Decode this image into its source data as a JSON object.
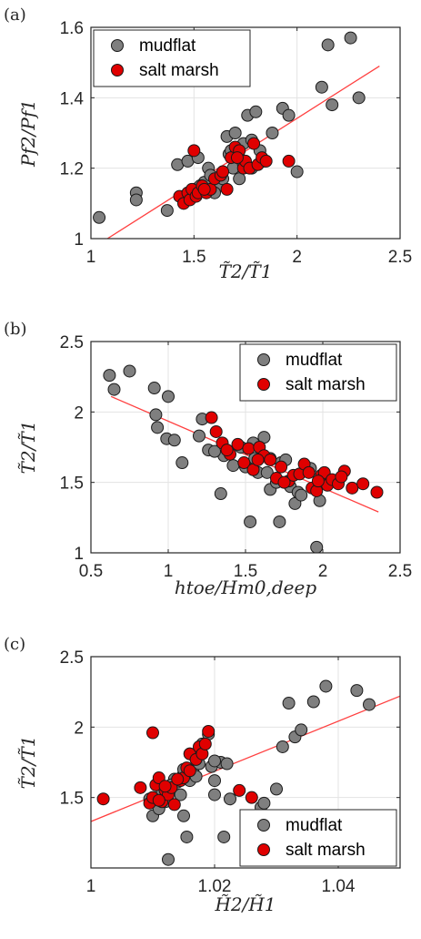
{
  "colors": {
    "mudflat": "#7f7f7f",
    "salt_marsh": "#e00000",
    "fit_line": "#ff4040",
    "grid": "#e3e3e3",
    "axis": "#262626"
  },
  "chart_data": [
    {
      "type": "scatter",
      "panel_label": "(a)",
      "xlabel": "T̃2/T̃1",
      "ylabel": "Pf2/Pf1",
      "xlim": [
        1,
        2.5
      ],
      "ylim": [
        1,
        1.6
      ],
      "xticks": [
        1,
        1.5,
        2,
        2.5
      ],
      "yticks": [
        1,
        1.2,
        1.4,
        1.6
      ],
      "xtick_labels": [
        "1",
        "1.5",
        "2",
        "2.5"
      ],
      "ytick_labels": [
        "1",
        "1.2",
        "1.4",
        "1.6"
      ],
      "grid": true,
      "legend_position": "top-left",
      "series": [
        {
          "name": "mudflat",
          "x": [
            1.04,
            1.22,
            1.22,
            1.37,
            1.42,
            1.45,
            1.47,
            1.52,
            1.55,
            1.57,
            1.58,
            1.62,
            1.66,
            1.67,
            1.68,
            1.7,
            1.72,
            1.74,
            1.76,
            1.78,
            1.8,
            1.82,
            1.84,
            1.88,
            1.93,
            1.96,
            2.0,
            2.12,
            2.15,
            2.17,
            2.26,
            2.3,
            1.5,
            1.53,
            1.6,
            1.64,
            1.69,
            1.72,
            1.74,
            1.78
          ],
          "y": [
            1.06,
            1.13,
            1.11,
            1.08,
            1.21,
            1.11,
            1.22,
            1.23,
            1.16,
            1.2,
            1.18,
            1.15,
            1.29,
            1.24,
            1.25,
            1.3,
            1.23,
            1.27,
            1.35,
            1.28,
            1.36,
            1.25,
            1.22,
            1.3,
            1.37,
            1.35,
            1.19,
            1.43,
            1.55,
            1.38,
            1.57,
            1.4,
            1.14,
            1.15,
            1.13,
            1.17,
            1.2,
            1.17,
            1.21,
            1.2
          ]
        },
        {
          "name": "salt marsh",
          "x": [
            1.43,
            1.45,
            1.47,
            1.48,
            1.49,
            1.5,
            1.51,
            1.52,
            1.54,
            1.56,
            1.58,
            1.6,
            1.63,
            1.66,
            1.68,
            1.7,
            1.72,
            1.74,
            1.75,
            1.77,
            1.79,
            1.81,
            1.83,
            1.85,
            1.96,
            1.55,
            1.64,
            1.71
          ],
          "y": [
            1.12,
            1.1,
            1.13,
            1.11,
            1.14,
            1.25,
            1.12,
            1.13,
            1.15,
            1.13,
            1.14,
            1.17,
            1.18,
            1.14,
            1.23,
            1.26,
            1.25,
            1.2,
            1.22,
            1.2,
            1.27,
            1.21,
            1.23,
            1.22,
            1.22,
            1.14,
            1.19,
            1.23
          ]
        }
      ],
      "fit_line": {
        "x": [
          1.08,
          2.4
        ],
        "y": [
          1.0,
          1.49
        ]
      }
    },
    {
      "type": "scatter",
      "panel_label": "(b)",
      "xlabel": "htoe/Hm0,deep",
      "ylabel": "T̃2/T̃1",
      "xlim": [
        0.5,
        2.5
      ],
      "ylim": [
        1,
        2.5
      ],
      "xticks": [
        0.5,
        1,
        1.5,
        2,
        2.5
      ],
      "yticks": [
        1,
        1.5,
        2,
        2.5
      ],
      "xtick_labels": [
        "0.5",
        "1",
        "1.5",
        "2",
        "2.5"
      ],
      "ytick_labels": [
        "1",
        "1.5",
        "2",
        "2.5"
      ],
      "grid": true,
      "legend_position": "top-right",
      "series": [
        {
          "name": "mudflat",
          "x": [
            0.62,
            0.65,
            0.75,
            0.91,
            0.93,
            1.0,
            0.99,
            1.04,
            1.09,
            1.2,
            1.22,
            1.26,
            1.34,
            1.36,
            1.47,
            1.5,
            1.53,
            1.56,
            1.58,
            1.62,
            1.66,
            1.66,
            1.7,
            1.72,
            1.73,
            1.76,
            1.79,
            1.82,
            1.84,
            1.86,
            1.92,
            1.96,
            1.98,
            2.03,
            2.1,
            0.92,
            1.3,
            1.42,
            1.55,
            1.64
          ],
          "y": [
            2.26,
            2.16,
            2.29,
            2.17,
            1.89,
            2.11,
            1.81,
            1.8,
            1.64,
            1.83,
            1.95,
            1.73,
            1.42,
            1.69,
            1.75,
            1.61,
            1.22,
            1.67,
            1.57,
            1.82,
            1.45,
            1.67,
            1.5,
            1.22,
            1.64,
            1.66,
            1.47,
            1.35,
            1.43,
            1.41,
            1.6,
            1.04,
            1.37,
            1.52,
            1.5,
            1.98,
            1.72,
            1.62,
            1.78,
            1.57
          ]
        },
        {
          "name": "salt marsh",
          "x": [
            1.28,
            1.31,
            1.35,
            1.4,
            1.45,
            1.49,
            1.52,
            1.55,
            1.59,
            1.62,
            1.66,
            1.7,
            1.73,
            1.78,
            1.81,
            1.85,
            1.88,
            1.91,
            1.93,
            1.96,
            1.99,
            2.01,
            2.03,
            2.06,
            2.1,
            2.14,
            2.19,
            2.26,
            2.35,
            1.38,
            1.58,
            1.75,
            1.97,
            2.12
          ],
          "y": [
            1.96,
            1.86,
            1.78,
            1.7,
            1.77,
            1.64,
            1.74,
            1.59,
            1.75,
            1.69,
            1.66,
            1.53,
            1.61,
            1.51,
            1.55,
            1.56,
            1.63,
            1.57,
            1.46,
            1.44,
            1.55,
            1.57,
            1.48,
            1.52,
            1.49,
            1.58,
            1.46,
            1.49,
            1.43,
            1.73,
            1.66,
            1.5,
            1.51,
            1.54
          ]
        }
      ],
      "fit_line": {
        "x": [
          0.63,
          2.36
        ],
        "y": [
          2.11,
          1.29
        ]
      }
    },
    {
      "type": "scatter",
      "panel_label": "(c)",
      "xlabel": "H̃2/H̃1",
      "ylabel": "T̃2/T̃1",
      "xlim": [
        1.0,
        1.05
      ],
      "ylim": [
        1,
        2.5
      ],
      "xticks": [
        1.0,
        1.02,
        1.04
      ],
      "yticks": [
        1.5,
        2,
        2.5
      ],
      "xtick_labels": [
        "1",
        "1.02",
        "1.04"
      ],
      "ytick_labels": [
        "1.5",
        "2",
        "2.5"
      ],
      "grid": true,
      "legend_position": "bottom-right",
      "series": [
        {
          "name": "mudflat",
          "x": [
            1.0095,
            1.01,
            1.011,
            1.0115,
            1.012,
            1.0125,
            1.013,
            1.0135,
            1.014,
            1.0145,
            1.015,
            1.015,
            1.0155,
            1.016,
            1.016,
            1.0165,
            1.017,
            1.017,
            1.0175,
            1.018,
            1.019,
            1.0195,
            1.02,
            1.02,
            1.021,
            1.0215,
            1.022,
            1.0225,
            1.0275,
            1.028,
            1.03,
            1.031,
            1.032,
            1.033,
            1.034,
            1.036,
            1.038,
            1.043,
            1.045,
            1.013,
            1.015,
            1.02
          ],
          "y": [
            1.49,
            1.37,
            1.42,
            1.55,
            1.47,
            1.06,
            1.56,
            1.63,
            1.61,
            1.52,
            1.67,
            1.37,
            1.22,
            1.81,
            1.62,
            1.69,
            1.65,
            1.79,
            1.74,
            1.88,
            1.95,
            1.72,
            1.62,
            1.52,
            1.75,
            1.22,
            1.74,
            1.49,
            1.43,
            1.46,
            1.56,
            1.86,
            2.17,
            1.93,
            1.98,
            2.18,
            2.29,
            2.26,
            2.16,
            1.59,
            1.7,
            1.76
          ]
        },
        {
          "name": "salt marsh",
          "x": [
            1.002,
            1.008,
            1.0095,
            1.01,
            1.0105,
            1.011,
            1.0115,
            1.012,
            1.0125,
            1.013,
            1.0135,
            1.0145,
            1.015,
            1.0155,
            1.016,
            1.017,
            1.0175,
            1.018,
            1.0185,
            1.019,
            1.01,
            1.011,
            1.012,
            1.014,
            1.016,
            1.024,
            1.026
          ],
          "y": [
            1.49,
            1.57,
            1.46,
            1.96,
            1.59,
            1.64,
            1.47,
            1.55,
            1.52,
            1.57,
            1.45,
            1.62,
            1.64,
            1.71,
            1.81,
            1.77,
            1.86,
            1.81,
            1.88,
            1.97,
            1.5,
            1.48,
            1.58,
            1.63,
            1.69,
            1.55,
            1.5
          ]
        }
      ],
      "fit_line": {
        "x": [
          1.0,
          1.05
        ],
        "y": [
          1.33,
          2.22
        ]
      }
    }
  ]
}
